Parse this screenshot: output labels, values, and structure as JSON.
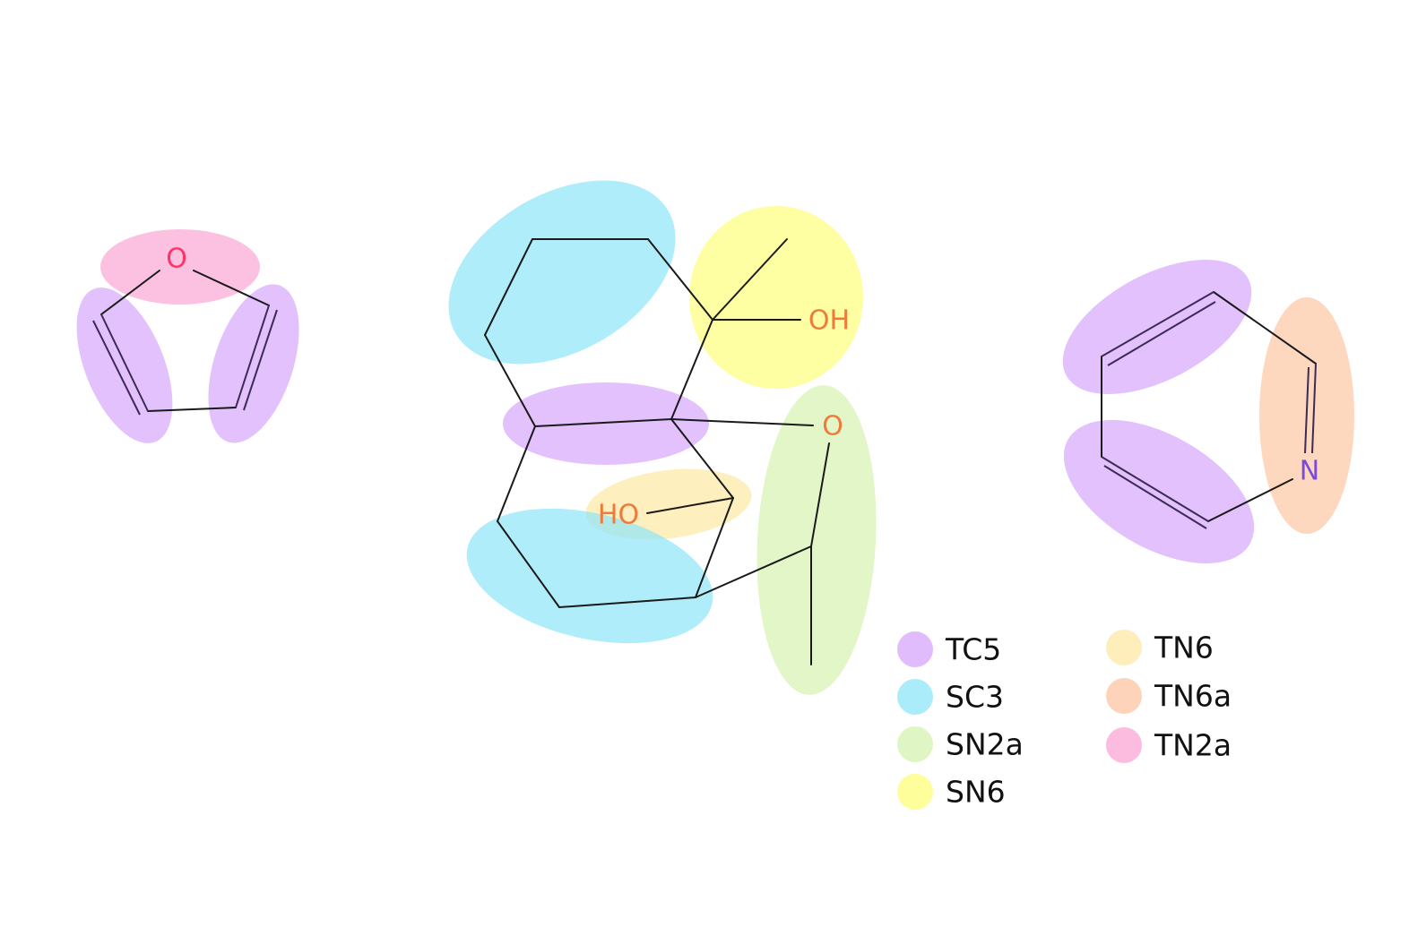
{
  "colors": {
    "TC5": "#d6a6fb",
    "SC3": "#8fe6f8",
    "SN2a": "#d6f2b0",
    "SN6": "#fdfd7a",
    "TN6": "#fde8a4",
    "TN6a": "#fcc6a2",
    "TN2a": "#fba6d4",
    "oxygen_in_furan": "#ff3366",
    "oxygen": "#f07a3a",
    "nitrogen": "#7a4bd6"
  },
  "atoms": {
    "furan_o": "O",
    "oh_right": "OH",
    "ether_o": "O",
    "ho_left": "HO",
    "pyridine_n": "N"
  },
  "legend": [
    {
      "label": "TC5",
      "color": "#d6a6fb"
    },
    {
      "label": "SC3",
      "color": "#8fe6f8"
    },
    {
      "label": "SN2a",
      "color": "#d6f2b0"
    },
    {
      "label": "SN6",
      "color": "#fdfd7a"
    },
    {
      "label": "TN6",
      "color": "#fde8a4"
    },
    {
      "label": "TN6a",
      "color": "#fcc6a2"
    },
    {
      "label": "TN2a",
      "color": "#fba6d4"
    }
  ]
}
